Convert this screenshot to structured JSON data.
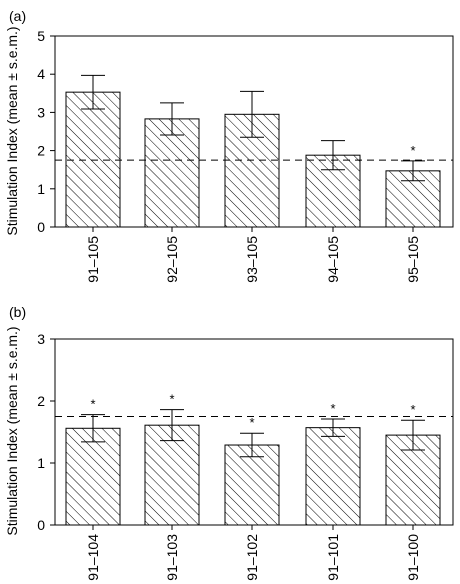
{
  "figure": {
    "ylabel": "Stimulation Index (mean ± s.e.m.)"
  },
  "chart_data": [
    {
      "type": "bar",
      "panel_label": "(a)",
      "categories": [
        "91–105",
        "92–105",
        "93–105",
        "94–105",
        "95–105"
      ],
      "values": [
        3.53,
        2.83,
        2.95,
        1.88,
        1.47
      ],
      "errors": [
        0.44,
        0.42,
        0.6,
        0.38,
        0.26
      ],
      "significance": [
        "",
        "",
        "",
        "",
        "*"
      ],
      "sig_symbol": "*",
      "reference_line": 1.75,
      "ylim": [
        0,
        5
      ],
      "yticks": [
        "0",
        "1",
        "2",
        "3",
        "4",
        "5"
      ],
      "ylabel": "Stimulation Index (mean ± s.e.m.)",
      "fill": "diagonal-hatch",
      "colors": {
        "bar": "#ffffff",
        "stroke": "#000000"
      }
    },
    {
      "type": "bar",
      "panel_label": "(b)",
      "categories": [
        "91–104",
        "91–103",
        "91–102",
        "91–101",
        "91–100"
      ],
      "values": [
        1.56,
        1.61,
        1.29,
        1.57,
        1.45
      ],
      "errors": [
        0.22,
        0.25,
        0.19,
        0.14,
        0.24
      ],
      "significance": [
        "*",
        "*",
        "*",
        "*",
        "*"
      ],
      "sig_symbol": "*",
      "reference_line": 1.75,
      "ylim": [
        0,
        3
      ],
      "yticks": [
        "0",
        "1",
        "2",
        "3"
      ],
      "ylabel": "Stimulation Index (mean ± s.e.m.)",
      "fill": "diagonal-hatch",
      "colors": {
        "bar": "#ffffff",
        "stroke": "#000000"
      }
    }
  ]
}
